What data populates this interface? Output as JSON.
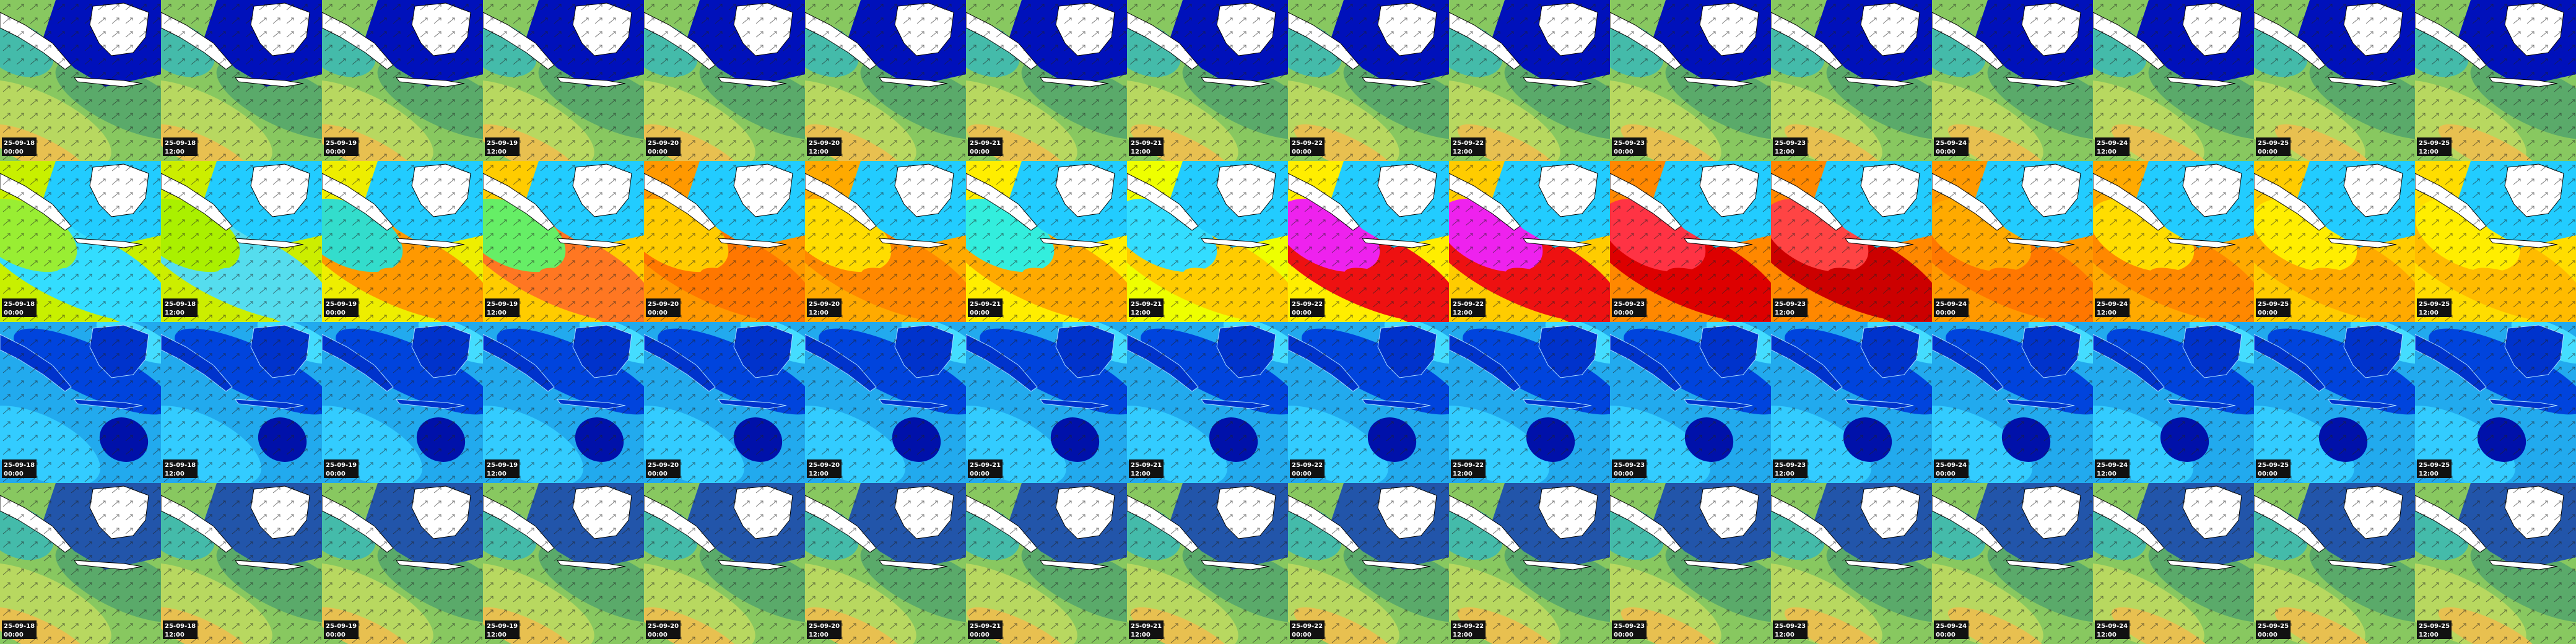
{
  "rows": 4,
  "frames": [
    {
      "date": "25-09-18",
      "time": "00:00"
    },
    {
      "date": "25-09-18",
      "time": "12:00"
    },
    {
      "date": "25-09-19",
      "time": "00:00"
    },
    {
      "date": "25-09-19",
      "time": "12:00"
    },
    {
      "date": "25-09-20",
      "time": "00:00"
    },
    {
      "date": "25-09-20",
      "time": "12:00"
    },
    {
      "date": "25-09-21",
      "time": "00:00"
    },
    {
      "date": "25-09-21",
      "time": "12:00"
    },
    {
      "date": "25-09-22",
      "time": "00:00"
    },
    {
      "date": "25-09-22",
      "time": "12:00"
    },
    {
      "date": "25-09-23",
      "time": "00:00"
    },
    {
      "date": "25-09-23",
      "time": "12:00"
    },
    {
      "date": "25-09-24",
      "time": "00:00"
    },
    {
      "date": "25-09-24",
      "time": "12:00"
    },
    {
      "date": "25-09-25",
      "time": "00:00"
    },
    {
      "date": "25-09-25",
      "time": "12:00"
    }
  ]
}
